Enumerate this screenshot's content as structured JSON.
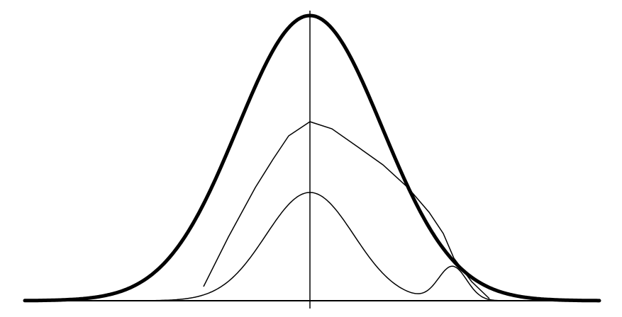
{
  "diagram": {
    "background_color": "#ffffff",
    "stroke_color": "#000000",
    "curves": [
      {
        "id": "outer-bell",
        "style": "thick",
        "shape": "gaussian"
      },
      {
        "id": "middle-curve",
        "style": "thin",
        "shape": "polyline"
      },
      {
        "id": "inner-curve",
        "style": "thin",
        "shape": "bimodal"
      }
    ]
  }
}
